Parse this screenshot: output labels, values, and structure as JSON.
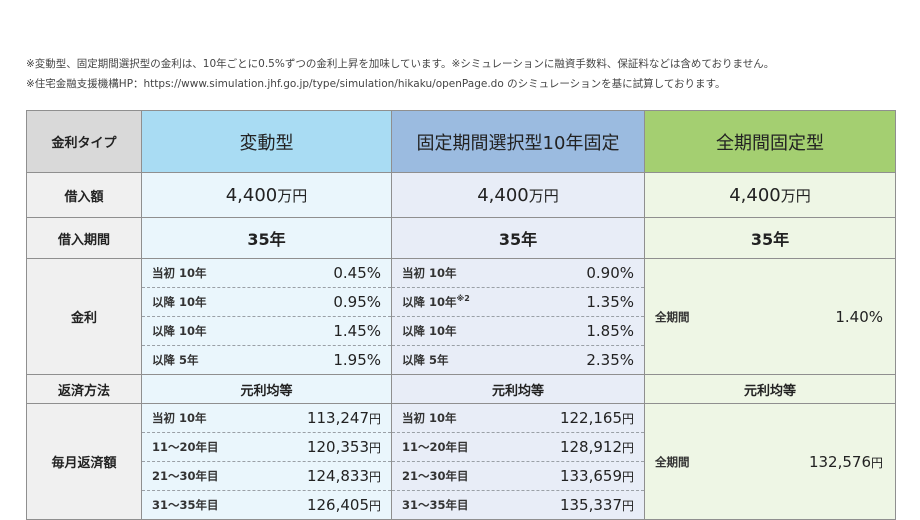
{
  "notes": [
    "※変動型、固定期間選択型の金利は、10年ごとに0.5%ずつの金利上昇を加味しています。※シミュレーションに融資手数料、保証料などは含めておりません。",
    "※住宅金融支援機構HP：https://www.simulation.jhf.go.jp/type/simulation/hikaku/openPage.do のシミュレーションを基に試算しております。"
  ],
  "row_labels": {
    "type": "金利タイプ",
    "amount": "借入額",
    "term": "借入期間",
    "rate": "金利",
    "method": "返済方法",
    "monthly": "毎月返済額"
  },
  "plans": [
    {
      "name": "変動型",
      "amount": "4,400",
      "amount_unit": "万円",
      "term": "35年",
      "method": "元利均等",
      "rates": [
        {
          "label": "当初 10年",
          "value": "0.45%"
        },
        {
          "label": "以降 10年",
          "value": "0.95%"
        },
        {
          "label": "以降 10年",
          "value": "1.45%"
        },
        {
          "label": "以降 5年",
          "value": "1.95%"
        }
      ],
      "payments": [
        {
          "label": "当初 10年",
          "value": "113,247",
          "unit": "円"
        },
        {
          "label": "11〜20年目",
          "value": "120,353",
          "unit": "円"
        },
        {
          "label": "21〜30年目",
          "value": "124,833",
          "unit": "円"
        },
        {
          "label": "31〜35年目",
          "value": "126,405",
          "unit": "円"
        }
      ]
    },
    {
      "name": "固定期間選択型10年固定",
      "amount": "4,400",
      "amount_unit": "万円",
      "term": "35年",
      "method": "元利均等",
      "rates": [
        {
          "label": "当初 10年",
          "value": "0.90%"
        },
        {
          "label": "以降 10年",
          "sup": "※2",
          "value": "1.35%"
        },
        {
          "label": "以降 10年",
          "value": "1.85%"
        },
        {
          "label": "以降 5年",
          "value": "2.35%"
        }
      ],
      "payments": [
        {
          "label": "当初 10年",
          "value": "122,165",
          "unit": "円"
        },
        {
          "label": "11〜20年目",
          "value": "128,912",
          "unit": "円"
        },
        {
          "label": "21〜30年目",
          "value": "133,659",
          "unit": "円"
        },
        {
          "label": "31〜35年目",
          "value": "135,337",
          "unit": "円"
        }
      ]
    },
    {
      "name": "全期間固定型",
      "amount": "4,400",
      "amount_unit": "万円",
      "term": "35年",
      "method": "元利均等",
      "rate_label": "全期間",
      "rate_value": "1.40%",
      "payment_label": "全期間",
      "payment_value": "132,576",
      "payment_unit": "円"
    }
  ],
  "colors": {
    "header_variable": "#a9dcf3",
    "header_fixed_period": "#9bbbe0",
    "header_full_fixed": "#a4cf71"
  }
}
